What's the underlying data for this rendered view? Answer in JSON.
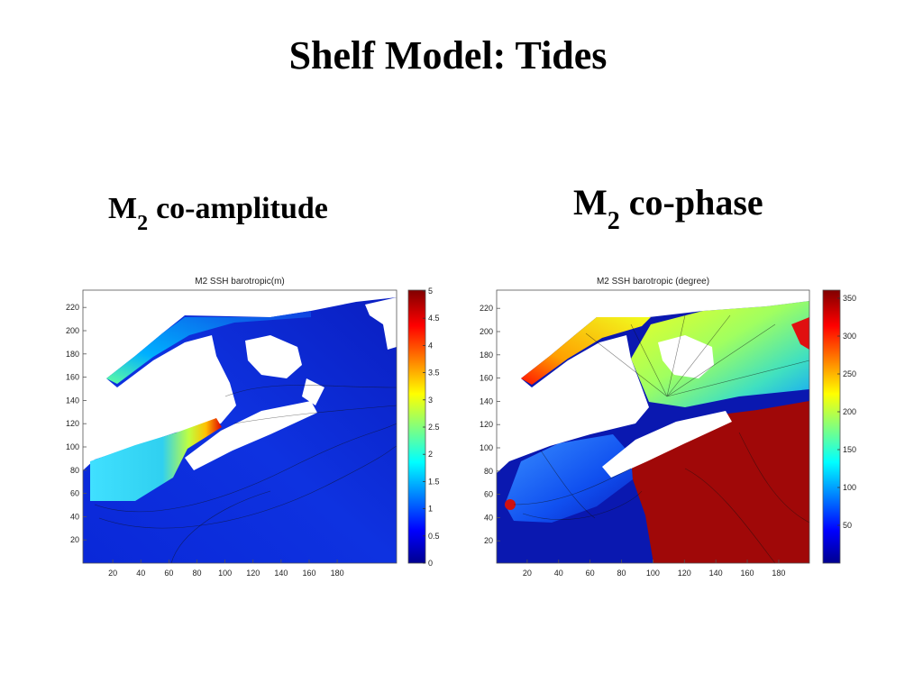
{
  "title": "Shelf Model: Tides",
  "panels": [
    {
      "heading": {
        "symbol": "M",
        "subscript": "2",
        "text": "co-amplitude"
      },
      "plot": {
        "title": "M2 SSH barotropic(m)",
        "xticks": [
          20,
          40,
          60,
          80,
          100,
          120,
          140,
          160,
          180
        ],
        "yticks": [
          20,
          40,
          60,
          80,
          100,
          120,
          140,
          160,
          180,
          200,
          220
        ],
        "colorbar_ticks": [
          0,
          0.5,
          1,
          1.5,
          2,
          2.5,
          3,
          3.5,
          4,
          4.5,
          5
        ]
      }
    },
    {
      "heading": {
        "symbol": "M",
        "subscript": "2",
        "text": "co-phase"
      },
      "plot": {
        "title": "M2 SSH barotropic (degree)",
        "xticks": [
          20,
          40,
          60,
          80,
          100,
          120,
          140,
          160,
          180
        ],
        "yticks": [
          20,
          40,
          60,
          80,
          100,
          120,
          140,
          160,
          180,
          200,
          220
        ],
        "colorbar_ticks": [
          50,
          100,
          150,
          200,
          250,
          300,
          350
        ]
      }
    }
  ]
}
